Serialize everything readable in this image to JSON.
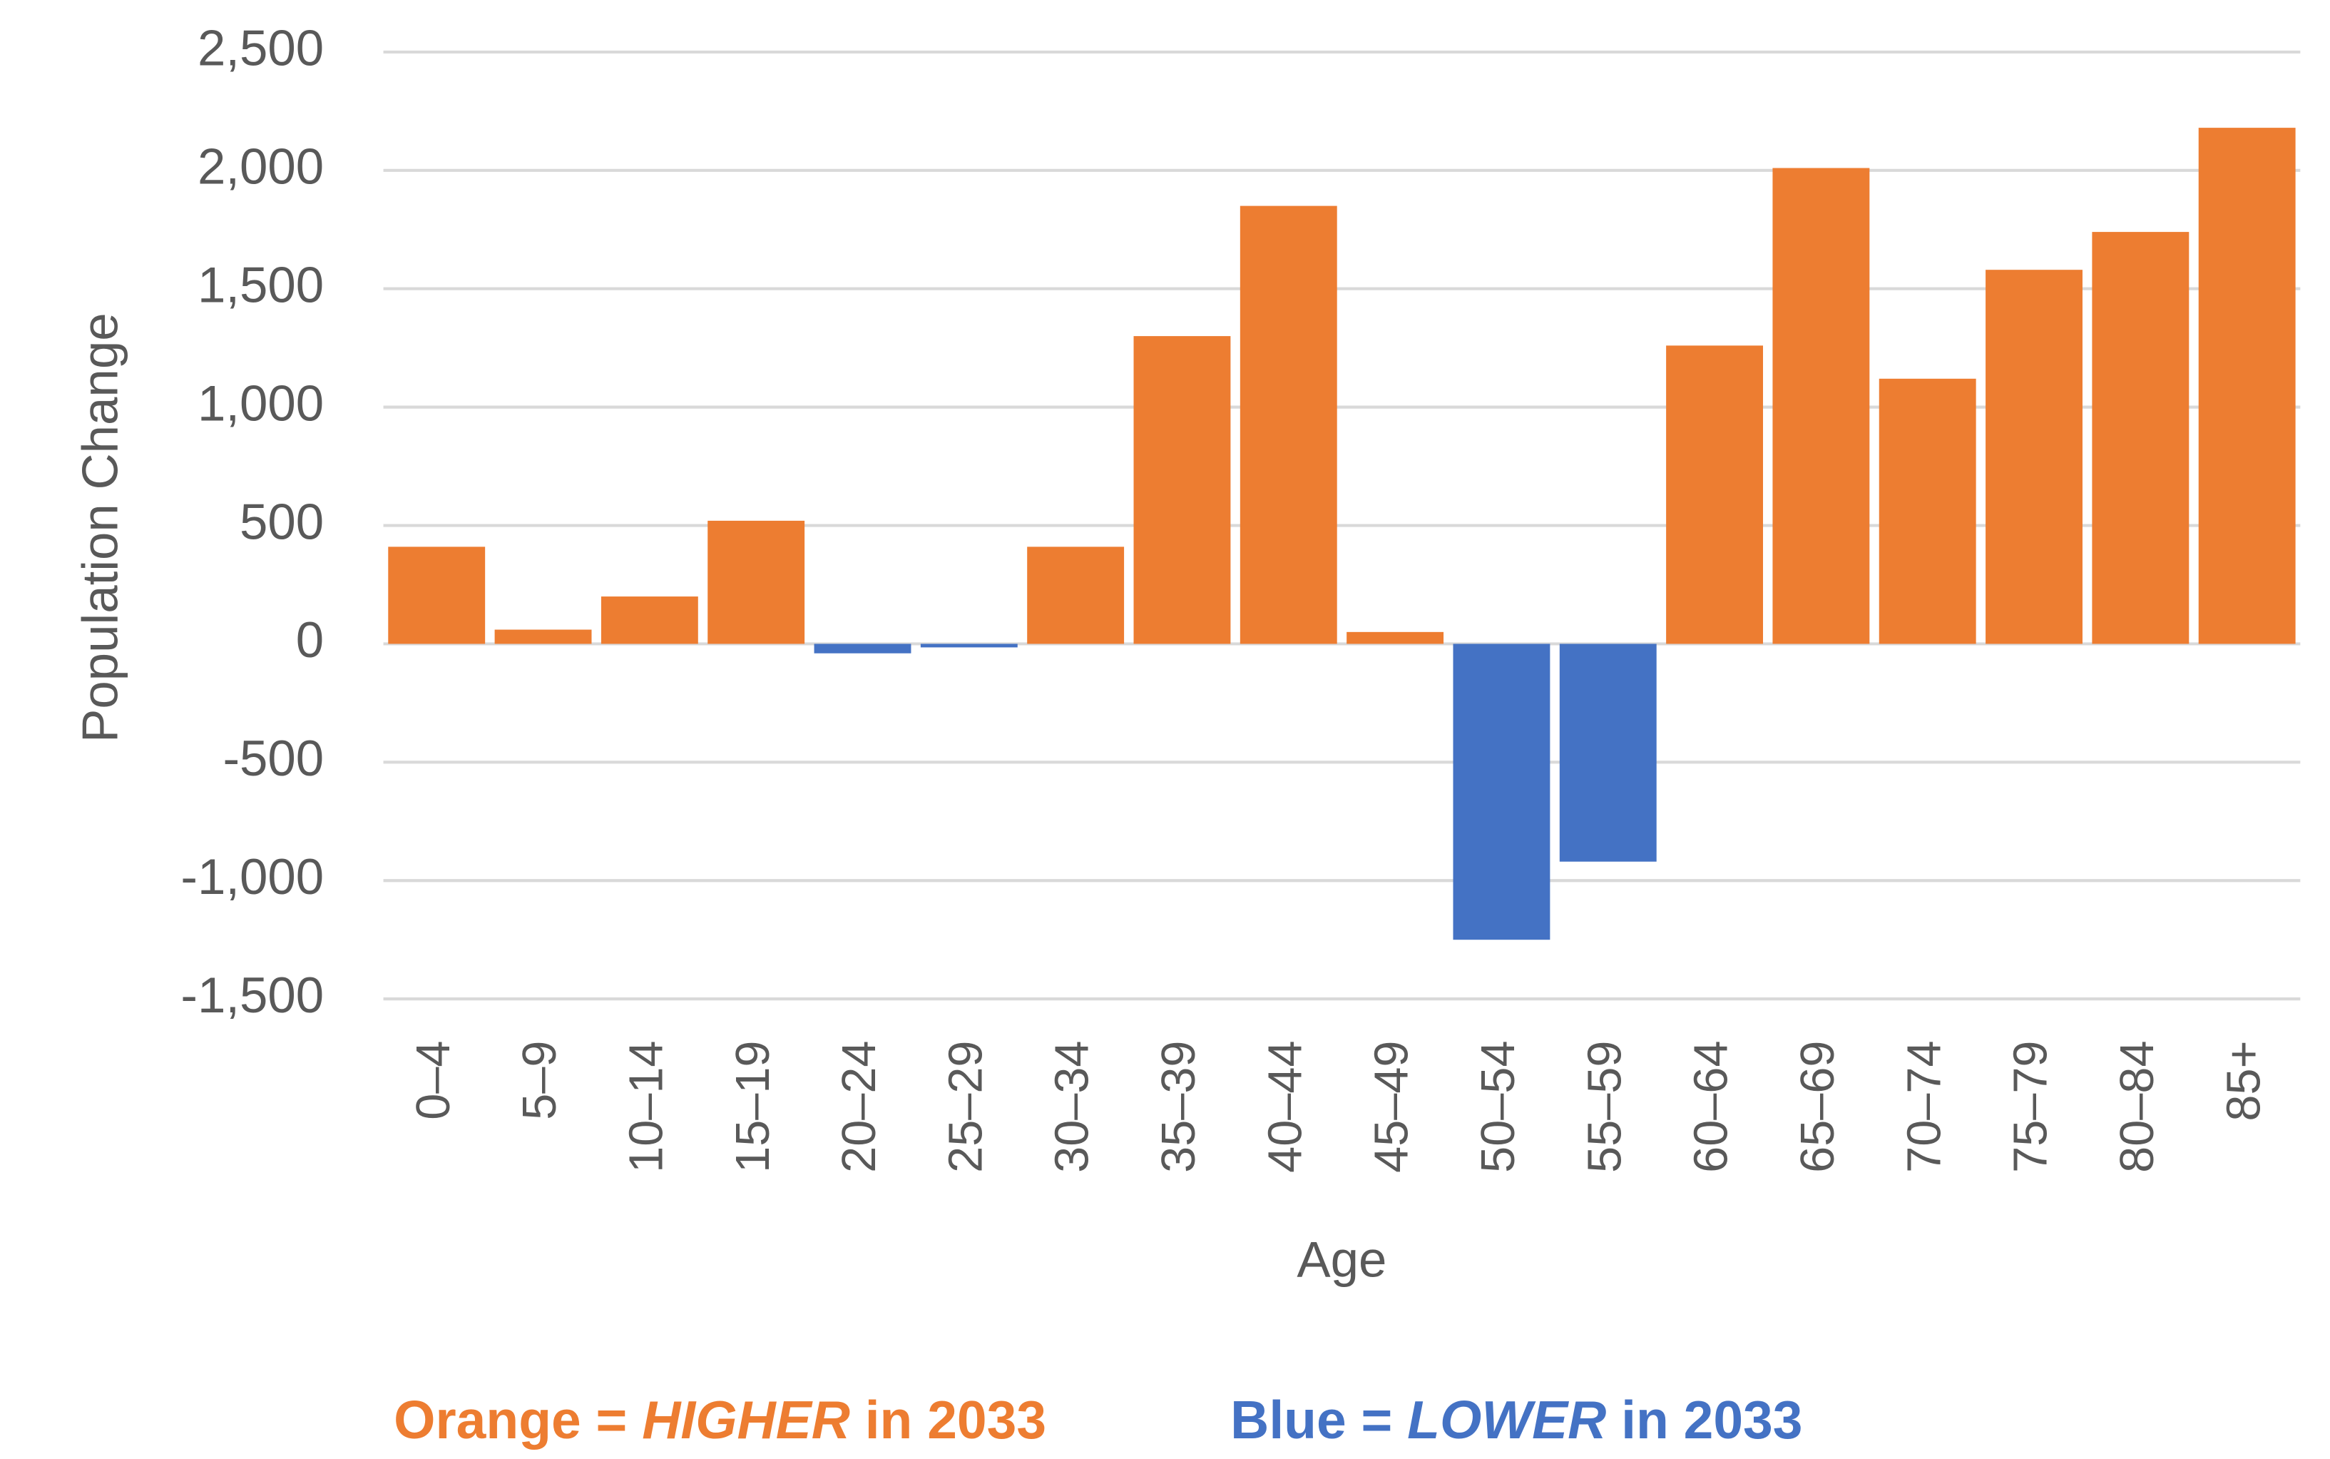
{
  "chart_data": {
    "type": "bar",
    "y_label": "Population Change",
    "x_label": "Age",
    "categories": [
      "0–4",
      "5–9",
      "10–14",
      "15–19",
      "20–24",
      "25–29",
      "30–34",
      "35–39",
      "40–44",
      "45–49",
      "50–54",
      "55–59",
      "60–64",
      "65–69",
      "70–74",
      "75–79",
      "80–84",
      "85+"
    ],
    "values": [
      410,
      60,
      200,
      520,
      -40,
      -15,
      410,
      1300,
      1850,
      50,
      -1250,
      -920,
      1260,
      2010,
      1120,
      1580,
      1740,
      2180
    ],
    "positive_color": "#ed7d31",
    "negative_color": "#4472c4",
    "ylim": [
      -1500,
      2500
    ],
    "yticks": [
      {
        "value": 2500,
        "label": "2,500"
      },
      {
        "value": 2000,
        "label": "2,000"
      },
      {
        "value": 1500,
        "label": "1,500"
      },
      {
        "value": 1000,
        "label": "1,000"
      },
      500,
      0,
      -500,
      {
        "value": -1000,
        "label": "-1,000"
      },
      {
        "value": -1500,
        "label": "-1,500"
      }
    ],
    "grid": true,
    "annotations": [
      {
        "parts": [
          "Orange = ",
          "HIGHER",
          " in 2033"
        ],
        "color": "#ed7d31"
      },
      {
        "parts": [
          "Blue = ",
          "LOWER",
          " in 2033"
        ],
        "color": "#4472c4"
      }
    ]
  }
}
